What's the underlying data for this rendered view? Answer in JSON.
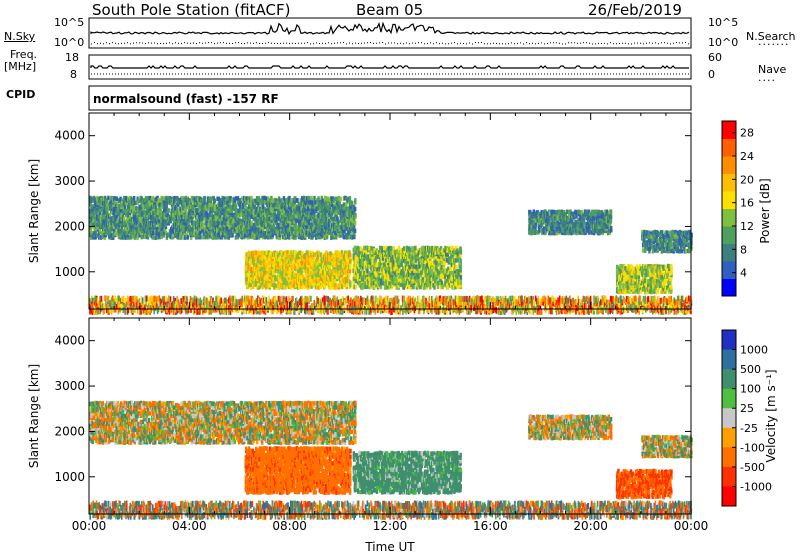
{
  "header": {
    "station": "South Pole Station (fitACF)",
    "beam": "Beam 05",
    "date": "26/Feb/2019"
  },
  "strip": {
    "left_label_1": "N.Sky",
    "left_ticks_1": [
      "10^5",
      "10^0"
    ],
    "right_ticks_1": [
      "10^5",
      "10^0"
    ],
    "right_label_1": "N.Search",
    "left_label_2a": "Freq.",
    "left_label_2b": "[MHz]",
    "left_ticks_2": [
      "18",
      "8"
    ],
    "right_ticks_2": [
      "60",
      "0"
    ],
    "right_label_2": "Nave",
    "cpid_label": "CPID",
    "cpid_text": "normalsound (fast) -157 RF"
  },
  "chart_data": [
    {
      "type": "heatmap",
      "title": "",
      "xlabel": "",
      "ylabel": "Slant Range [km]",
      "xlim": [
        "00:00",
        "24:00"
      ],
      "ylim": [
        180,
        4500
      ],
      "yticks": [
        1000,
        2000,
        3000,
        4000
      ],
      "colorbar": {
        "label": "Power [dB]",
        "ticks": [
          4,
          8,
          12,
          16,
          20,
          24,
          28
        ],
        "range": [
          0,
          30
        ],
        "colors": [
          "#0000ff",
          "#2f5fbf",
          "#3d7f7f",
          "#4f9f5f",
          "#7fbf3f",
          "#ffdf00",
          "#ffbf00",
          "#ff8f00",
          "#ff5f00",
          "#ff0000"
        ]
      },
      "echo_regions": [
        {
          "name": "upper-band",
          "t_start": 0.0,
          "t_end": 10.6,
          "range_start": 1800,
          "range_end": 2700,
          "value": 9
        },
        {
          "name": "main-echo",
          "t_start": 6.2,
          "t_end": 10.4,
          "range_start": 700,
          "range_end": 1500,
          "value": 17
        },
        {
          "name": "mid-echo",
          "t_start": 10.5,
          "t_end": 14.8,
          "range_start": 700,
          "range_end": 1600,
          "value": 13
        },
        {
          "name": "late-upper",
          "t_start": 17.5,
          "t_end": 20.8,
          "range_start": 1900,
          "range_end": 2400,
          "value": 8
        },
        {
          "name": "late-echo",
          "t_start": 21.0,
          "t_end": 23.2,
          "range_start": 600,
          "range_end": 1200,
          "value": 14
        },
        {
          "name": "end-band",
          "t_start": 22.0,
          "t_end": 24.0,
          "range_start": 1500,
          "range_end": 1950,
          "value": 8
        },
        {
          "name": "ground-scatter",
          "t_start": 0.0,
          "t_end": 24.0,
          "range_start": 180,
          "range_end": 500,
          "value": 20
        }
      ]
    },
    {
      "type": "heatmap",
      "title": "",
      "xlabel": "Time UT",
      "ylabel": "Slant Range [km]",
      "xlim": [
        "00:00",
        "24:00"
      ],
      "ylim": [
        180,
        4500
      ],
      "xticks": [
        "00:00",
        "04:00",
        "08:00",
        "12:00",
        "16:00",
        "20:00",
        "00:00"
      ],
      "yticks": [
        1000,
        2000,
        3000,
        4000
      ],
      "colorbar": {
        "label": "Velocity [m s⁻¹]",
        "ticks": [
          "1000",
          "500",
          "100",
          "25",
          "-25",
          "-100",
          "-500",
          "-1000"
        ],
        "colors": [
          "#2030c0",
          "#2f6fa0",
          "#3f8f6f",
          "#4fbf3f",
          "#c8c8c8",
          "#ffa000",
          "#ff7000",
          "#ff3000",
          "#ff0000"
        ]
      },
      "echo_regions": [
        {
          "name": "upper-band",
          "t_start": 0.0,
          "t_end": 10.6,
          "range_start": 1800,
          "range_end": 2700,
          "value": 0
        },
        {
          "name": "main-echo",
          "t_start": 6.2,
          "t_end": 10.4,
          "range_start": 700,
          "range_end": 1700,
          "value": -200
        },
        {
          "name": "mid-echo",
          "t_start": 10.5,
          "t_end": 14.8,
          "range_start": 700,
          "range_end": 1600,
          "value": 150
        },
        {
          "name": "late-upper",
          "t_start": 17.5,
          "t_end": 20.8,
          "range_start": 1900,
          "range_end": 2400,
          "value": 0
        },
        {
          "name": "late-echo",
          "t_start": 21.0,
          "t_end": 23.2,
          "range_start": 600,
          "range_end": 1200,
          "value": -300
        },
        {
          "name": "end-band",
          "t_start": 22.0,
          "t_end": 24.0,
          "range_start": 1500,
          "range_end": 1950,
          "value": 0
        },
        {
          "name": "ground-scatter",
          "t_start": 0.0,
          "t_end": 24.0,
          "range_start": 180,
          "range_end": 500,
          "value": 30
        }
      ]
    }
  ]
}
